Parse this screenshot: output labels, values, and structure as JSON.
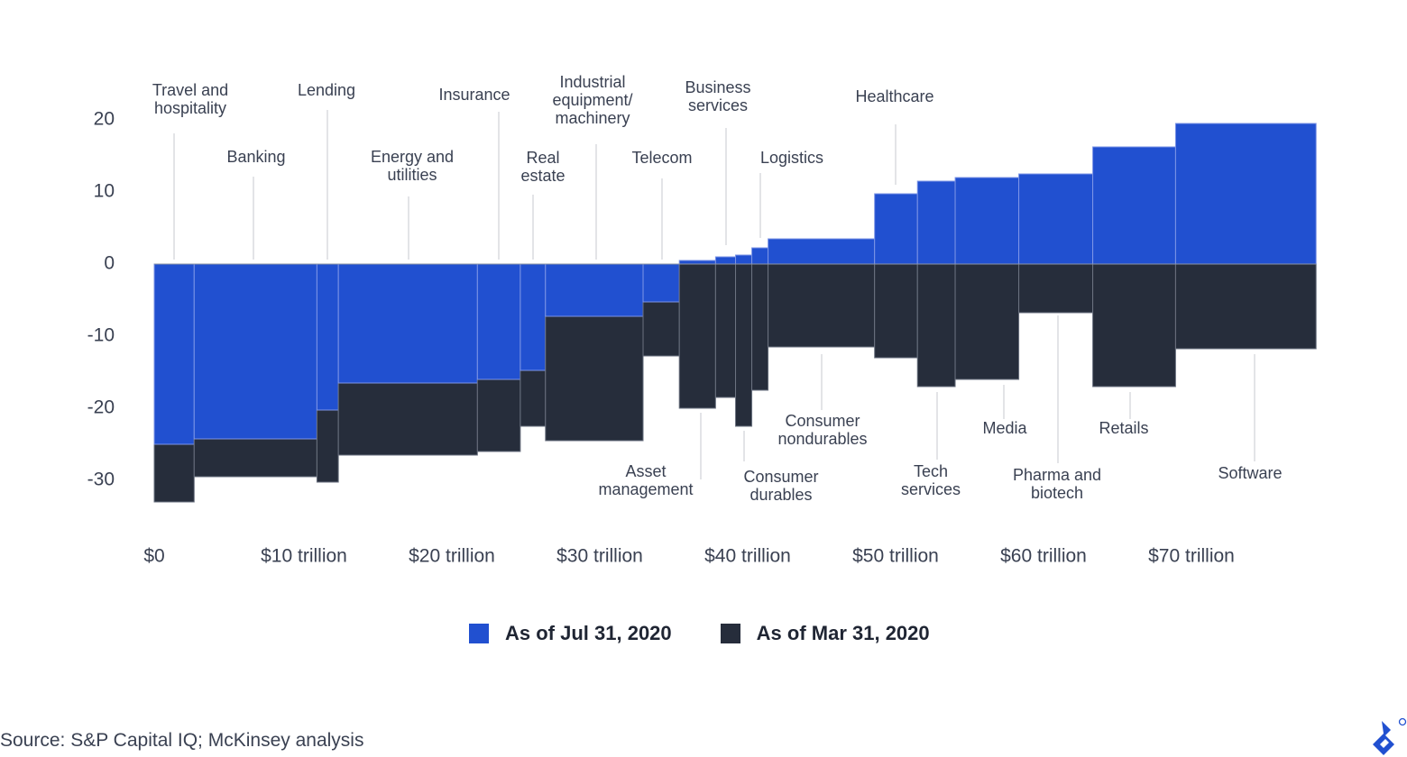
{
  "chart_data": {
    "type": "bar",
    "subtype": "variable-width (marimekko)",
    "xlabel": "",
    "ylabel": "",
    "x_ticks": [
      {
        "value": 0,
        "label": "$0"
      },
      {
        "value": 10,
        "label": "$10 trillion"
      },
      {
        "value": 20,
        "label": "$20 trillion"
      },
      {
        "value": 30,
        "label": "$30 trillion"
      },
      {
        "value": 40,
        "label": "$40 trillion"
      },
      {
        "value": 50,
        "label": "$50 trillion"
      },
      {
        "value": 60,
        "label": "$60 trillion"
      },
      {
        "value": 70,
        "label": "$70 trillion"
      }
    ],
    "y_ticks": [
      20,
      10,
      0,
      -10,
      -20,
      -30
    ],
    "ylim": [
      -35,
      22
    ],
    "xlim": [
      0,
      78.5
    ],
    "grid": false,
    "legend_position": "bottom",
    "series": [
      {
        "name": "As of Jul 31, 2020",
        "color": "#2150d0"
      },
      {
        "name": "As of Mar 31, 2020",
        "color": "#262d3b"
      }
    ],
    "categories": [
      {
        "label": [
          "Travel and",
          "hospitality"
        ],
        "width": 2.7,
        "jul": -25,
        "mar": -33
      },
      {
        "label": [
          "Banking"
        ],
        "width": 8.3,
        "jul": -24.25,
        "mar": -29.5
      },
      {
        "label": [
          "Lending"
        ],
        "width": 1.45,
        "jul": -20.25,
        "mar": -30.25
      },
      {
        "label": [
          "Energy and",
          "utilities"
        ],
        "width": 9.4,
        "jul": -16.5,
        "mar": -26.5
      },
      {
        "label": [
          "Insurance"
        ],
        "width": 2.9,
        "jul": -16,
        "mar": -26
      },
      {
        "label": [
          "Real",
          "estate"
        ],
        "width": 1.7,
        "jul": -14.75,
        "mar": -22.5
      },
      {
        "label": [
          "Industrial",
          "equipment/",
          "machinery"
        ],
        "width": 6.6,
        "jul": -7.25,
        "mar": -24.5
      },
      {
        "label": [
          "Telecom"
        ],
        "width": 2.45,
        "jul": -5.25,
        "mar": -12.75
      },
      {
        "label": [
          "Asset",
          "management"
        ],
        "width": 2.45,
        "jul": 0.5,
        "mar": -20
      },
      {
        "label": [
          "Business",
          "services"
        ],
        "width": 1.35,
        "jul": 1,
        "mar": -18.5
      },
      {
        "label": [
          "Consumer",
          "durables"
        ],
        "width": 1.1,
        "jul": 1.25,
        "mar": -22.5
      },
      {
        "label": [
          "Logistics"
        ],
        "width": 1.1,
        "jul": 2.25,
        "mar": -17.5
      },
      {
        "label": [
          "Consumer",
          "nondurables"
        ],
        "width": 7.2,
        "jul": 3.5,
        "mar": -11.5
      },
      {
        "label": [
          "Healthcare"
        ],
        "width": 2.9,
        "jul": 9.75,
        "mar": -13
      },
      {
        "label": [
          "Tech",
          "services"
        ],
        "width": 2.55,
        "jul": 11.5,
        "mar": -17
      },
      {
        "label": [
          "Media"
        ],
        "width": 4.3,
        "jul": 12,
        "mar": -16
      },
      {
        "label": [
          "Pharma and",
          "biotech"
        ],
        "width": 5.0,
        "jul": 12.5,
        "mar": -6.75
      },
      {
        "label": [
          "Retails"
        ],
        "width": 5.6,
        "jul": 16.25,
        "mar": -17
      },
      {
        "label": [
          "Software"
        ],
        "width": 9.5,
        "jul": 19.5,
        "mar": -11.75
      }
    ]
  },
  "legend": {
    "jul": "As of Jul 31, 2020",
    "mar": "As of Mar 31, 2020"
  },
  "source": "Source: S&P Capital IQ; McKinsey analysis",
  "logo": "toptal-logo"
}
